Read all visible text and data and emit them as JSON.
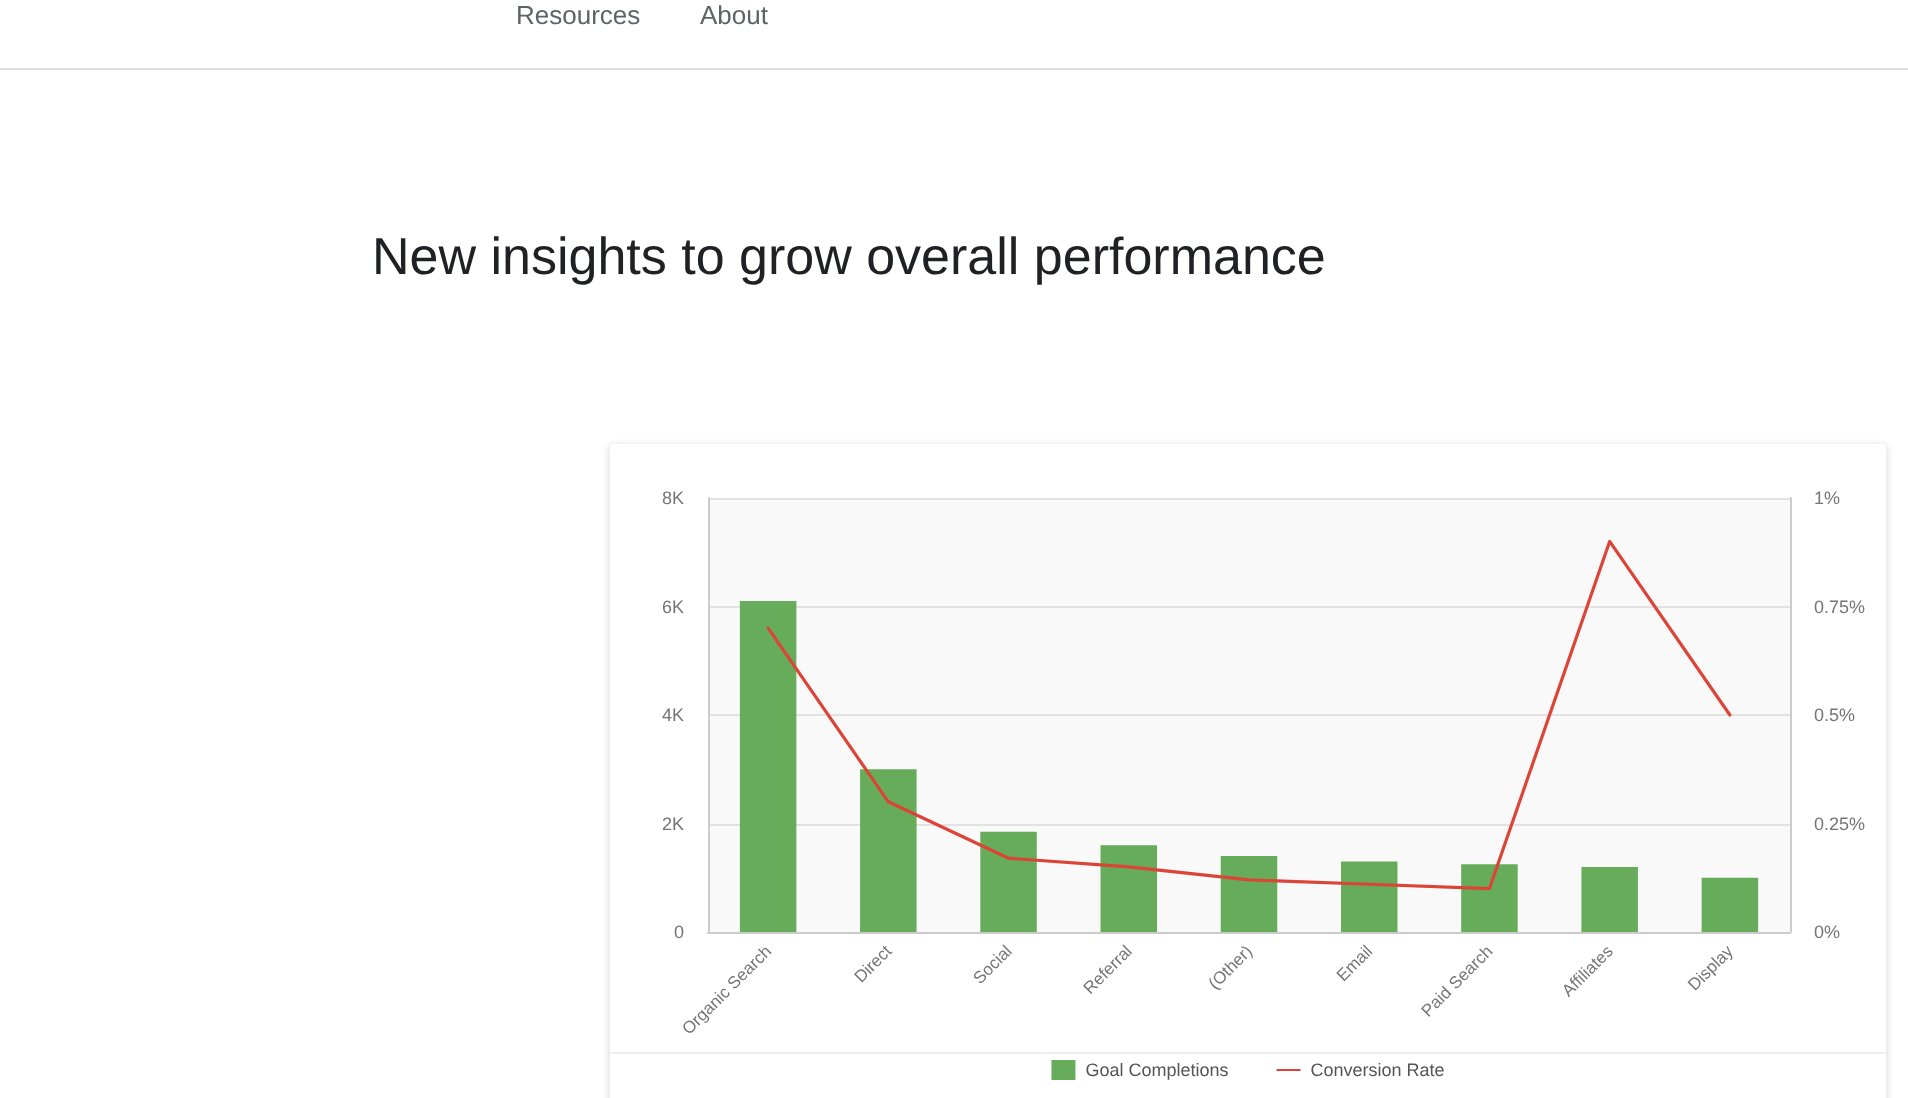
{
  "chart_data": {
    "type": "bar",
    "title": "New insights to grow overall performance",
    "annotations": [
      "Resources",
      "About"
    ],
    "categories": [
      "Organic Search",
      "Direct",
      "Social",
      "Referral",
      "(Other)",
      "Email",
      "Paid Search",
      "Affiliates",
      "Display"
    ],
    "series": [
      {
        "name": "Goal Completions",
        "color": "#66ac5b",
        "values": [
          6100,
          3000,
          1850,
          1600,
          1400,
          1300,
          1250,
          1200,
          1000
        ]
      },
      {
        "name": "Conversion Rate",
        "type": "line",
        "axis": "y2",
        "color": "#db4437",
        "values": [
          0.7,
          0.3,
          0.17,
          0.15,
          0.12,
          0.11,
          0.1,
          0.9,
          0.5
        ]
      }
    ],
    "ylim": [
      0,
      8000
    ],
    "yticks": [
      0,
      {
        "value": 2000,
        "label": "2K"
      },
      {
        "value": 4000,
        "label": "4K"
      },
      {
        "value": 6000,
        "label": "6K"
      },
      {
        "value": 8000,
        "label": "8K"
      }
    ],
    "y2lim": [
      0,
      1
    ],
    "y2ticks": [
      {
        "value": 0,
        "label": "0%"
      },
      {
        "value": 0.25,
        "label": "0.25%"
      },
      {
        "value": 0.5,
        "label": "0.5%"
      },
      {
        "value": 0.75,
        "label": "0.75%"
      },
      {
        "value": 1,
        "label": "1%"
      }
    ],
    "grid": "y",
    "legend": "bottom",
    "marker": "none",
    "line_style": "solid"
  }
}
